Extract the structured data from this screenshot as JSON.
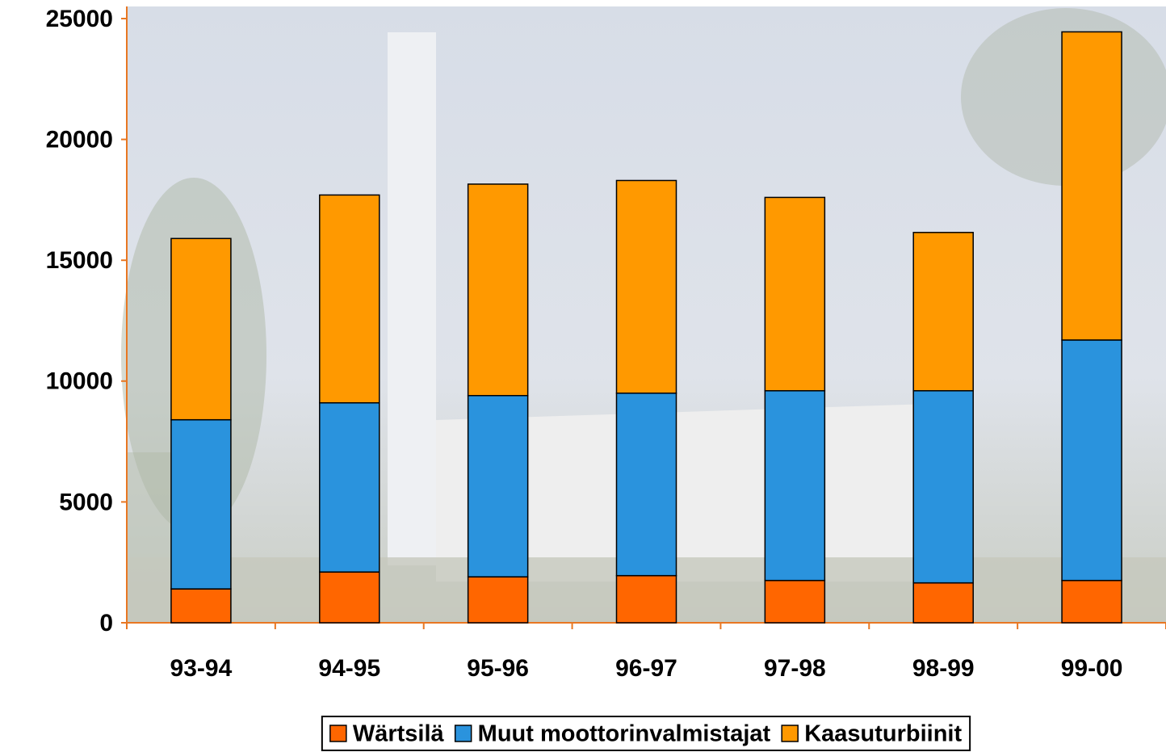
{
  "chart_data": {
    "type": "stacked_bar",
    "categories": [
      "93-94",
      "94-95",
      "95-96",
      "96-97",
      "97-98",
      "98-99",
      "99-00"
    ],
    "series": [
      {
        "name": "Wärtsilä",
        "color": "#ff6600",
        "values": [
          1400,
          2100,
          1900,
          1950,
          1750,
          1650,
          1750
        ]
      },
      {
        "name": "Muut moottorinvalmistajat",
        "color": "#2a93dd",
        "values": [
          7000,
          7000,
          7500,
          7550,
          7850,
          7950,
          9950
        ]
      },
      {
        "name": "Kaasuturbiinit",
        "color": "#ff9900",
        "values": [
          7500,
          8600,
          8750,
          8800,
          8000,
          6550,
          12750
        ]
      }
    ],
    "ylim": [
      0,
      25000
    ],
    "yticks": [
      0,
      5000,
      10000,
      15000,
      20000,
      25000
    ],
    "legend": "bottom"
  }
}
